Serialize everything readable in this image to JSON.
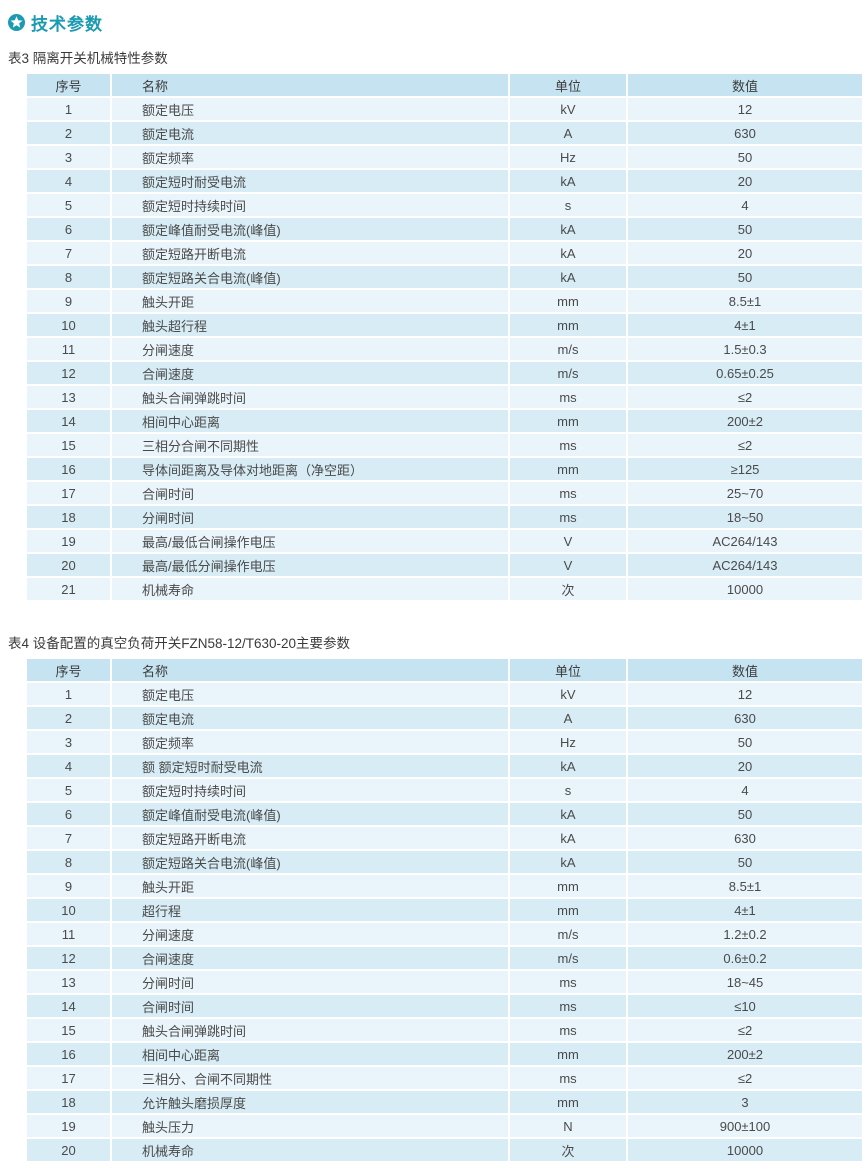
{
  "section": {
    "title": "技术参数",
    "icon": "star-circle-icon"
  },
  "colors": {
    "accent_teal": "#1b9ab2",
    "table_header_bg": "#c5e3f0",
    "row_odd_bg": "#e9f5fb",
    "row_even_bg": "#d7ecf5",
    "text_dark": "#3a3a3a"
  },
  "tables": [
    {
      "caption": "表3 隔离开关机械特性参数",
      "columns": [
        "序号",
        "名称",
        "单位",
        "数值"
      ],
      "rows": [
        [
          "1",
          "额定电压",
          "kV",
          "12"
        ],
        [
          "2",
          "额定电流",
          "A",
          "630"
        ],
        [
          "3",
          "额定频率",
          "Hz",
          "50"
        ],
        [
          "4",
          "额定短时耐受电流",
          "kA",
          "20"
        ],
        [
          "5",
          "额定短时持续时间",
          "s",
          "4"
        ],
        [
          "6",
          "额定峰值耐受电流(峰值)",
          "kA",
          "50"
        ],
        [
          "7",
          "额定短路开断电流",
          "kA",
          "20"
        ],
        [
          "8",
          "额定短路关合电流(峰值)",
          "kA",
          "50"
        ],
        [
          "9",
          "触头开距",
          "mm",
          "8.5±1"
        ],
        [
          "10",
          "触头超行程",
          "mm",
          "4±1"
        ],
        [
          "11",
          "分闸速度",
          "m/s",
          "1.5±0.3"
        ],
        [
          "12",
          "合闸速度",
          "m/s",
          "0.65±0.25"
        ],
        [
          "13",
          "触头合闸弹跳时间",
          "ms",
          "≤2"
        ],
        [
          "14",
          "相间中心距离",
          "mm",
          "200±2"
        ],
        [
          "15",
          "三相分合闸不同期性",
          "ms",
          "≤2"
        ],
        [
          "16",
          "导体间距离及导体对地距离（净空距）",
          "mm",
          "≥125"
        ],
        [
          "17",
          "合闸时间",
          "ms",
          "25~70"
        ],
        [
          "18",
          "分闸时间",
          "ms",
          "18~50"
        ],
        [
          "19",
          "最高/最低合闸操作电压",
          "V",
          "AC264/143"
        ],
        [
          "20",
          "最高/最低分闸操作电压",
          "V",
          "AC264/143"
        ],
        [
          "21",
          "机械寿命",
          "次",
          "10000"
        ]
      ]
    },
    {
      "caption": "表4 设备配置的真空负荷开关FZN58-12/T630-20主要参数",
      "columns": [
        "序号",
        "名称",
        "单位",
        "数值"
      ],
      "rows": [
        [
          "1",
          "额定电压",
          "kV",
          "12"
        ],
        [
          "2",
          "额定电流",
          "A",
          "630"
        ],
        [
          "3",
          "额定频率",
          "Hz",
          "50"
        ],
        [
          "4",
          "额 额定短时耐受电流",
          "kA",
          "20"
        ],
        [
          "5",
          "额定短时持续时间",
          "s",
          "4"
        ],
        [
          "6",
          "额定峰值耐受电流(峰值)",
          "kA",
          "50"
        ],
        [
          "7",
          "额定短路开断电流",
          "kA",
          "630"
        ],
        [
          "8",
          "额定短路关合电流(峰值)",
          "kA",
          "50"
        ],
        [
          "9",
          "触头开距",
          "mm",
          "8.5±1"
        ],
        [
          "10",
          "超行程",
          "mm",
          "4±1"
        ],
        [
          "11",
          "分闸速度",
          "m/s",
          "1.2±0.2"
        ],
        [
          "12",
          "合闸速度",
          "m/s",
          "0.6±0.2"
        ],
        [
          "13",
          "分闸时间",
          "ms",
          "18~45"
        ],
        [
          "14",
          "合闸时间",
          "ms",
          "≤10"
        ],
        [
          "15",
          "触头合闸弹跳时间",
          "ms",
          "≤2"
        ],
        [
          "16",
          "相间中心距离",
          "mm",
          "200±2"
        ],
        [
          "17",
          "三相分、合闸不同期性",
          "ms",
          "≤2"
        ],
        [
          "18",
          "允许触头磨损厚度",
          "mm",
          "3"
        ],
        [
          "19",
          "触头压力",
          "N",
          "900±100"
        ],
        [
          "20",
          "机械寿命",
          "次",
          "10000"
        ]
      ]
    }
  ]
}
